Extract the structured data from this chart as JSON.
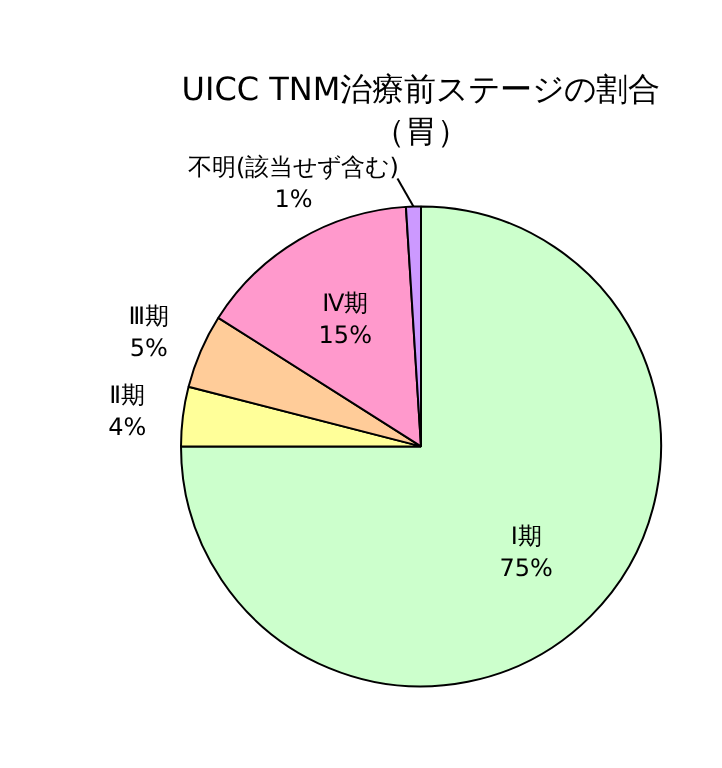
{
  "chart_data": {
    "type": "pie",
    "title": "UICC TNM治療前ステージの割合",
    "subtitle": "（胃）",
    "categories": [
      "Ⅰ期",
      "Ⅱ期",
      "Ⅲ期",
      "Ⅳ期",
      "不明(該当せず含む)"
    ],
    "values": [
      75,
      4,
      5,
      15,
      1
    ],
    "colors": [
      "#ccffcc",
      "#ffff99",
      "#ffcc99",
      "#ff99cc",
      "#cc99ff"
    ],
    "value_labels": [
      "75%",
      "4%",
      "5%",
      "15%",
      "1%"
    ],
    "legend": false
  }
}
